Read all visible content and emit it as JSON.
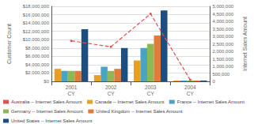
{
  "chart_data": {
    "type": "bar",
    "categories": [
      "2001\nCY",
      "2002\nCY",
      "2003\nCY",
      "2004\nCY"
    ],
    "series": [
      {
        "name": "Australia -- Internet Sales Amount",
        "type": "line",
        "axis": "y2",
        "color": "#E05252",
        "line_style": "dashed",
        "marker": "circle",
        "values": [
          2700000,
          2300000,
          4500000,
          100000
        ]
      },
      {
        "name": "Canada -- Internet Sales Amount",
        "type": "bar",
        "color": "#E8A020",
        "values": [
          3000000,
          1500000,
          5000000,
          200000
        ]
      },
      {
        "name": "France -- Internet Sales Amount",
        "type": "bar",
        "color": "#4BA3C3",
        "values": [
          2500000,
          3500000,
          8000000,
          200000
        ]
      },
      {
        "name": "Germany -- Internet Sales Amount",
        "type": "bar",
        "color": "#8DB855",
        "values": [
          2500000,
          2500000,
          9000000,
          200000
        ]
      },
      {
        "name": "United Kingdom -- Internet Sales Amount",
        "type": "bar",
        "color": "#E07B39",
        "values": [
          2500000,
          3000000,
          11000000,
          200000
        ]
      },
      {
        "name": "United States -- Internet Sales Amount",
        "type": "bar",
        "color": "#1C4E80",
        "values": [
          12500000,
          8000000,
          17000000,
          200000
        ]
      }
    ],
    "ylabel": "Customer Count",
    "y2label": "Internet Sales Amount",
    "ylim": [
      0,
      18000000
    ],
    "yticks": [
      {
        "value": 0,
        "label": "$0"
      },
      {
        "value": 2000000,
        "label": "$2,000,000"
      },
      {
        "value": 4000000,
        "label": "$4,000,000"
      },
      {
        "value": 6000000,
        "label": "$6,000,000"
      },
      {
        "value": 8000000,
        "label": "$8,000,000"
      },
      {
        "value": 10000000,
        "label": "$10,000,000"
      },
      {
        "value": 12000000,
        "label": "$12,000,000"
      },
      {
        "value": 14000000,
        "label": "$14,000,000"
      },
      {
        "value": 16000000,
        "label": "$16,000,000"
      },
      {
        "value": 18000000,
        "label": "$18,000,000"
      }
    ],
    "y2lim": [
      0,
      5000000
    ],
    "y2ticks": [
      0,
      {
        "value": 500000,
        "label": "500,000"
      },
      {
        "value": 1000000,
        "label": "1,000,000"
      },
      {
        "value": 1500000,
        "label": "1,500,000"
      },
      {
        "value": 2000000,
        "label": "2,000,000"
      },
      {
        "value": 2500000,
        "label": "2,500,000"
      },
      {
        "value": 3000000,
        "label": "3,000,000"
      },
      {
        "value": 3500000,
        "label": "3,500,000"
      },
      {
        "value": 4000000,
        "label": "4,000,000"
      },
      {
        "value": 4500000,
        "label": "4,500,000"
      },
      {
        "value": 5000000,
        "label": "5,000,000"
      }
    ],
    "grid": true,
    "legend": "bottom"
  }
}
